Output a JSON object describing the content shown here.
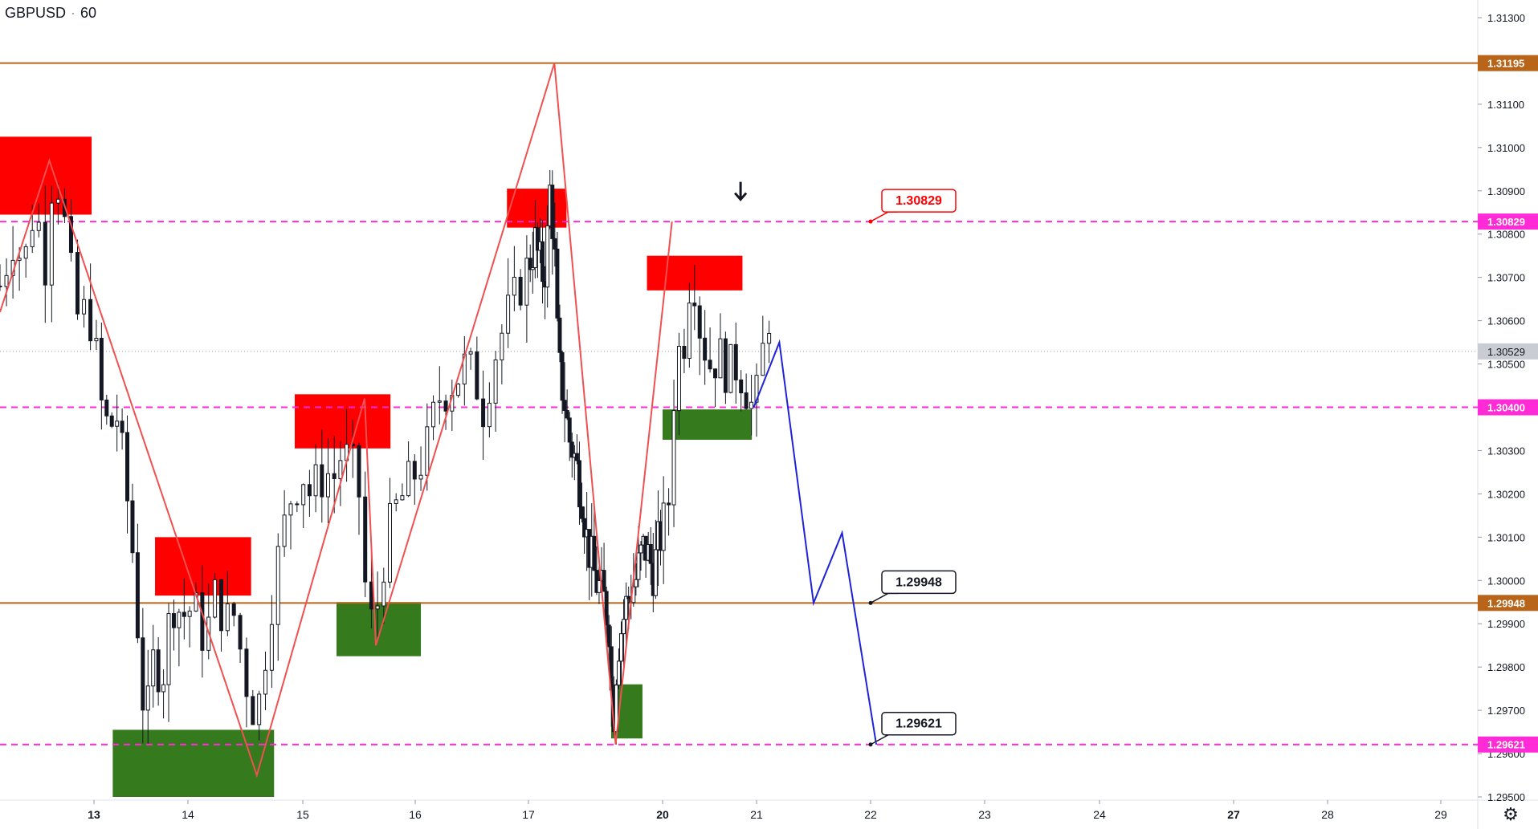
{
  "header": {
    "symbol": "GBPUSD",
    "interval": "60"
  },
  "settings": {
    "icon": "gear-icon",
    "glyph": "⚙"
  },
  "colors": {
    "bull": "#ffffff",
    "bear": "#131722",
    "resistance_line": "#b8651a",
    "dashed_line": "#ff2bd6",
    "zigzag": "#f05050",
    "projection": "#1e22d8",
    "supply_zone": "#ff0000",
    "demand_zone": "#357a1c",
    "last_price_badge": "#c9ccd3"
  },
  "chart_data": {
    "type": "candlestick",
    "symbol": "GBPUSD",
    "timeframe": "60",
    "ylim": [
      1.295,
      1.3135
    ],
    "y_ticks": [
      "1.31300",
      "1.31200",
      "1.31100",
      "1.31000",
      "1.30900",
      "1.30800",
      "1.30700",
      "1.30600",
      "1.30500",
      "1.30400",
      "1.30300",
      "1.30200",
      "1.30100",
      "1.30000",
      "1.29900",
      "1.29800",
      "1.29700",
      "1.29600",
      "1.29500"
    ],
    "x_ticks": [
      {
        "label": "13",
        "bold": true,
        "day": 13
      },
      {
        "label": "14",
        "bold": false,
        "day": 14
      },
      {
        "label": "15",
        "bold": false,
        "day": 15
      },
      {
        "label": "16",
        "bold": false,
        "day": 16
      },
      {
        "label": "17",
        "bold": false,
        "day": 17
      },
      {
        "label": "20",
        "bold": true,
        "day": 20
      },
      {
        "label": "21",
        "bold": false,
        "day": 21
      },
      {
        "label": "22",
        "bold": false,
        "day": 22
      },
      {
        "label": "23",
        "bold": false,
        "day": 23
      },
      {
        "label": "24",
        "bold": false,
        "day": 24
      },
      {
        "label": "27",
        "bold": true,
        "day": 27
      },
      {
        "label": "28",
        "bold": false,
        "day": 28
      },
      {
        "label": "29",
        "bold": false,
        "day": 29
      }
    ],
    "x_range": {
      "start": 12.2,
      "end": 29.35
    },
    "candle_path": [
      [
        12.2,
        1.3068
      ],
      [
        12.32,
        1.308
      ],
      [
        12.4,
        1.3072
      ],
      [
        12.5,
        1.3088
      ],
      [
        12.58,
        1.3072
      ],
      [
        12.65,
        1.3095
      ],
      [
        12.72,
        1.309
      ],
      [
        12.78,
        1.3074
      ],
      [
        12.86,
        1.3061
      ],
      [
        12.95,
        1.3062
      ],
      [
        13.0,
        1.3058
      ],
      [
        13.06,
        1.3042
      ],
      [
        13.15,
        1.3035
      ],
      [
        13.25,
        1.3038
      ],
      [
        13.32,
        1.3025
      ],
      [
        13.4,
        1.301
      ],
      [
        13.45,
        1.2995
      ],
      [
        13.5,
        1.2978
      ],
      [
        13.55,
        1.2965
      ],
      [
        13.65,
        1.2985
      ],
      [
        13.72,
        1.2975
      ],
      [
        13.78,
        1.2988
      ],
      [
        13.85,
        1.2995
      ],
      [
        13.95,
        1.2992
      ],
      [
        14.05,
        1.2994
      ],
      [
        14.15,
        1.2986
      ],
      [
        14.25,
        1.2998
      ],
      [
        14.32,
        1.299
      ],
      [
        14.4,
        1.2992
      ],
      [
        14.45,
        1.2985
      ],
      [
        14.52,
        1.2975
      ],
      [
        14.6,
        1.2968
      ],
      [
        14.68,
        1.2985
      ],
      [
        14.75,
        1.3
      ],
      [
        14.82,
        1.301
      ],
      [
        14.9,
        1.302
      ],
      [
        15.0,
        1.3025
      ],
      [
        15.05,
        1.302
      ],
      [
        15.12,
        1.3022
      ],
      [
        15.2,
        1.3025
      ],
      [
        15.28,
        1.3024
      ],
      [
        15.35,
        1.303
      ],
      [
        15.45,
        1.3025
      ],
      [
        15.5,
        1.302
      ],
      [
        15.55,
        1.3
      ],
      [
        15.6,
        1.299
      ],
      [
        15.65,
        1.2992
      ],
      [
        15.72,
        1.3005
      ],
      [
        15.8,
        1.3015
      ],
      [
        15.9,
        1.302
      ],
      [
        16.0,
        1.3025
      ],
      [
        16.1,
        1.303
      ],
      [
        16.2,
        1.3042
      ],
      [
        16.3,
        1.3045
      ],
      [
        16.4,
        1.3048
      ],
      [
        16.45,
        1.305
      ],
      [
        16.55,
        1.3045
      ],
      [
        16.6,
        1.304
      ],
      [
        16.7,
        1.3052
      ],
      [
        16.8,
        1.306
      ],
      [
        16.88,
        1.3065
      ],
      [
        16.95,
        1.307
      ],
      [
        17.05,
        1.3075
      ],
      [
        17.15,
        1.3078
      ],
      [
        17.25,
        1.3073
      ],
      [
        17.35,
        1.307
      ],
      [
        17.42,
        1.3078
      ],
      [
        17.48,
        1.309
      ],
      [
        17.52,
        1.3085
      ],
      [
        17.58,
        1.3078
      ],
      [
        17.62,
        1.306
      ],
      [
        17.7,
        1.3048
      ],
      [
        17.8,
        1.3042
      ],
      [
        17.9,
        1.3033
      ],
      [
        18.0,
        1.303
      ],
      [
        18.1,
        1.3025
      ],
      [
        18.2,
        1.302
      ],
      [
        18.3,
        1.301
      ],
      [
        18.4,
        1.3005
      ],
      [
        18.5,
        1.3
      ],
      [
        18.6,
        1.2998
      ],
      [
        18.7,
        1.2995
      ],
      [
        18.8,
        1.299
      ],
      [
        18.85,
        1.2975
      ],
      [
        18.9,
        1.2968
      ],
      [
        18.95,
        1.2978
      ],
      [
        19.0,
        1.2985
      ],
      [
        19.1,
        1.299
      ],
      [
        19.2,
        1.2995
      ],
      [
        19.3,
        1.2998
      ],
      [
        19.4,
        1.3
      ],
      [
        19.5,
        1.3005
      ],
      [
        19.6,
        1.3008
      ],
      [
        19.7,
        1.3005
      ],
      [
        19.8,
        1.3002
      ],
      [
        19.9,
        1.3008
      ],
      [
        20.0,
        1.3012
      ],
      [
        20.08,
        1.302
      ],
      [
        20.1,
        1.304
      ],
      [
        20.15,
        1.3048
      ],
      [
        20.2,
        1.3058
      ],
      [
        20.25,
        1.3055
      ],
      [
        20.3,
        1.3075
      ],
      [
        20.35,
        1.3068
      ],
      [
        20.4,
        1.3058
      ],
      [
        20.5,
        1.305
      ],
      [
        20.6,
        1.3052
      ],
      [
        20.7,
        1.3048
      ],
      [
        20.8,
        1.305
      ],
      [
        20.9,
        1.3044
      ],
      [
        20.95,
        1.304
      ],
      [
        21.0,
        1.3042
      ],
      [
        21.05,
        1.3052
      ],
      [
        21.1,
        1.306
      ],
      [
        21.12,
        1.3063
      ]
    ],
    "horizontal_lines": [
      {
        "value": 1.31195,
        "label": "1.31195",
        "style": "solid"
      },
      {
        "value": 1.30829,
        "label": "1.30829",
        "style": "dashed"
      },
      {
        "value": 1.304,
        "label": "1.30400",
        "style": "dashed"
      },
      {
        "value": 1.29948,
        "label": "1.29948",
        "style": "solid"
      },
      {
        "value": 1.29621,
        "label": "1.29621",
        "style": "dashed"
      }
    ],
    "last_price": {
      "value": 1.30529,
      "label": "1.30529"
    },
    "zigzag": [
      [
        12.2,
        1.3062
      ],
      [
        12.62,
        1.3097
      ],
      [
        14.6,
        1.2955
      ],
      [
        15.55,
        1.3042
      ],
      [
        15.65,
        1.2985
      ],
      [
        17.58,
        1.31195
      ],
      [
        18.95,
        1.29621
      ],
      [
        20.1,
        1.30829
      ]
    ],
    "projection": [
      [
        20.97,
        1.304
      ],
      [
        21.2,
        1.3055
      ],
      [
        21.5,
        1.29948
      ],
      [
        21.75,
        1.3011
      ],
      [
        22.05,
        1.29621
      ]
    ],
    "supply_zones": [
      {
        "x0": 12.2,
        "x1": 12.98,
        "y0": 1.30845,
        "y1": 1.31025
      },
      {
        "x0": 13.65,
        "x1": 14.55,
        "y0": 1.29965,
        "y1": 1.301
      },
      {
        "x0": 14.93,
        "x1": 15.78,
        "y0": 1.30305,
        "y1": 1.3043
      },
      {
        "x0": 16.81,
        "x1": 17.85,
        "y0": 1.30815,
        "y1": 1.30905
      },
      {
        "x0": 19.65,
        "x1": 20.85,
        "y0": 1.3067,
        "y1": 1.3075
      }
    ],
    "demand_zones": [
      {
        "x0": 13.2,
        "x1": 14.75,
        "y0": 1.295,
        "y1": 1.29655
      },
      {
        "x0": 15.3,
        "x1": 16.05,
        "y0": 1.29825,
        "y1": 1.2995
      },
      {
        "x0": 18.85,
        "x1": 19.55,
        "y0": 1.29635,
        "y1": 1.2976
      },
      {
        "x0": 20.0,
        "x1": 20.95,
        "y0": 1.30325,
        "y1": 1.30395
      }
    ],
    "callouts": [
      {
        "label": "1.30829",
        "x": 22.0,
        "y": 1.30829,
        "text_color": "#ff0000",
        "border": "#ff0000"
      },
      {
        "label": "1.29948",
        "x": 22.0,
        "y": 1.29948,
        "text_color": "#131722",
        "border": "#131722"
      },
      {
        "label": "1.29621",
        "x": 22.0,
        "y": 1.29621,
        "text_color": "#131722",
        "border": "#131722"
      }
    ],
    "down_arrow": {
      "x": 20.83,
      "y": 1.3088
    }
  }
}
